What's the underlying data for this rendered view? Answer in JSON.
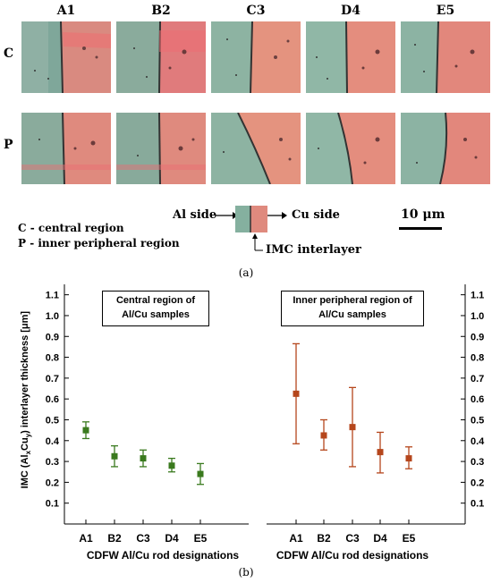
{
  "figure_a": {
    "columns": [
      "A1",
      "B2",
      "C3",
      "D4",
      "E5"
    ],
    "rows": [
      "C",
      "P"
    ],
    "legend": {
      "central": "C - central region",
      "peripheral": "P - inner peripheral region"
    },
    "schematic": {
      "al_side": "Al side",
      "cu_side": "Cu side",
      "imc": "IMC interlayer"
    },
    "scale_bar": "10 μm",
    "caption": "(a)"
  },
  "figure_b": {
    "caption": "(b)",
    "colors": {
      "central": "#3a7a1e",
      "peripheral": "#b5461c"
    },
    "chart_data": [
      {
        "type": "scatter",
        "title": "Central region of Al/Cu samples",
        "ylabel_parts": [
          "IMC (Al",
          "x",
          "Cu",
          "y",
          ") interlayer thickness [μm]"
        ],
        "xlabel": "CDFW Al/Cu rod designations",
        "categories": [
          "A1",
          "B2",
          "C3",
          "D4",
          "E5"
        ],
        "values": [
          0.45,
          0.325,
          0.315,
          0.28,
          0.24
        ],
        "error_low": [
          0.41,
          0.275,
          0.275,
          0.25,
          0.19
        ],
        "error_high": [
          0.49,
          0.375,
          0.355,
          0.315,
          0.29
        ],
        "ylim": [
          0,
          1.15
        ],
        "yticks": [
          "0.1",
          "0.2",
          "0.3",
          "0.4",
          "0.5",
          "0.6",
          "0.7",
          "0.8",
          "0.9",
          "1.0",
          "1.1"
        ]
      },
      {
        "type": "scatter",
        "title": "Inner peripheral region of Al/Cu samples",
        "xlabel": "CDFW Al/Cu rod designations",
        "categories": [
          "A1",
          "B2",
          "C3",
          "D4",
          "E5"
        ],
        "values": [
          0.625,
          0.425,
          0.465,
          0.345,
          0.315
        ],
        "error_low": [
          0.385,
          0.355,
          0.275,
          0.245,
          0.265
        ],
        "error_high": [
          0.865,
          0.5,
          0.655,
          0.44,
          0.37
        ],
        "ylim": [
          0,
          1.15
        ],
        "yticks": [
          "0.1",
          "0.2",
          "0.3",
          "0.4",
          "0.5",
          "0.6",
          "0.7",
          "0.8",
          "0.9",
          "1.0",
          "1.1"
        ]
      }
    ]
  }
}
